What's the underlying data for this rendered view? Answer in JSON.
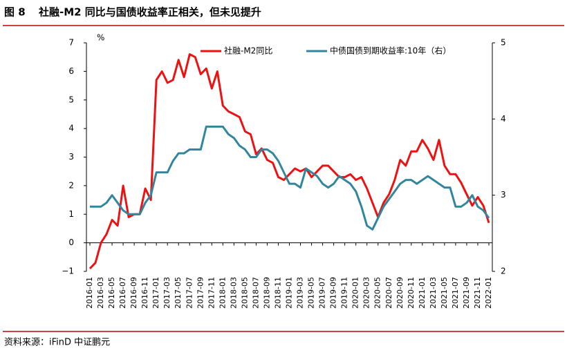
{
  "chart_data": {
    "type": "line",
    "figure_label": "图 8",
    "title": "社融-M2 同比与国债收益率正相关，但未见提升",
    "y_unit": "%",
    "source": "资料来源：iFinD   中证鹏元",
    "categories": [
      "2016-01",
      null,
      "2016-03",
      null,
      "2016-05",
      null,
      "2016-07",
      null,
      "2016-09",
      null,
      "2016-11",
      null,
      "2017-01",
      null,
      "2017-03",
      null,
      "2017-05",
      null,
      "2017-07",
      null,
      "2017-09",
      null,
      "2017-11",
      null,
      "2018-01",
      null,
      "2018-03",
      null,
      "2018-05",
      null,
      "2018-07",
      null,
      "2018-09",
      null,
      "2018-11",
      null,
      "2019-01",
      null,
      "2019-03",
      null,
      "2019-05",
      null,
      "2019-07",
      null,
      "2019-09",
      null,
      "2019-11",
      null,
      "2020-01",
      null,
      "2020-03",
      null,
      "2020-05",
      null,
      "2020-07",
      null,
      "2020-09",
      null,
      "2020-11",
      null,
      "2021-01",
      null,
      "2021-03",
      null,
      "2021-05",
      null,
      "2021-07",
      null,
      "2021-09",
      null,
      "2021-11",
      null,
      "2022-01"
    ],
    "series": [
      {
        "name": "社融-M2同比",
        "color": "#ee1111",
        "values": [
          -0.9,
          -0.7,
          0.0,
          0.3,
          0.8,
          0.6,
          2.0,
          0.9,
          1.0,
          1.0,
          1.9,
          1.5,
          5.7,
          6.0,
          5.6,
          5.7,
          6.4,
          5.8,
          6.6,
          6.5,
          5.9,
          6.1,
          5.4,
          6.0,
          4.8,
          4.6,
          4.5,
          4.4,
          3.9,
          3.8,
          3.1,
          3.3,
          2.9,
          2.8,
          2.3,
          2.2,
          2.4,
          2.6,
          2.5,
          2.6,
          2.3,
          2.5,
          2.7,
          2.7,
          2.5,
          2.3,
          2.3,
          2.4,
          2.2,
          2.3,
          1.9,
          1.4,
          0.9,
          1.4,
          1.7,
          2.2,
          2.9,
          2.7,
          3.2,
          3.2,
          3.6,
          3.3,
          2.9,
          3.6,
          2.7,
          2.4,
          2.4,
          2.1,
          1.7,
          1.3,
          1.6,
          1.3,
          0.7
        ]
      },
      {
        "name": "中债国债到期收益率:10年（右）",
        "color": "#31859c",
        "axis": "y2",
        "values": [
          2.85,
          2.85,
          2.85,
          2.9,
          3.0,
          2.9,
          2.8,
          2.75,
          2.75,
          2.75,
          2.9,
          3.0,
          3.3,
          3.3,
          3.3,
          3.45,
          3.55,
          3.55,
          3.6,
          3.6,
          3.6,
          3.9,
          3.9,
          3.9,
          3.9,
          3.8,
          3.75,
          3.65,
          3.6,
          3.5,
          3.5,
          3.6,
          3.6,
          3.55,
          3.45,
          3.3,
          3.15,
          3.15,
          3.1,
          3.35,
          3.3,
          3.25,
          3.15,
          3.1,
          3.15,
          3.25,
          3.2,
          3.15,
          3.05,
          2.85,
          2.6,
          2.55,
          2.7,
          2.85,
          2.95,
          3.05,
          3.15,
          3.2,
          3.2,
          3.15,
          3.2,
          3.25,
          3.2,
          3.15,
          3.1,
          3.1,
          2.85,
          2.85,
          2.9,
          3.0,
          2.85,
          2.8,
          2.7
        ]
      }
    ],
    "ylim": [
      -1,
      7
    ],
    "yticks": [
      {
        "value": -1,
        "label": "−1"
      },
      0,
      1,
      2,
      3,
      4,
      5,
      6,
      7
    ],
    "y2lim": [
      2,
      5
    ],
    "y2ticks": [
      2,
      3,
      4,
      5
    ],
    "grid": false
  }
}
